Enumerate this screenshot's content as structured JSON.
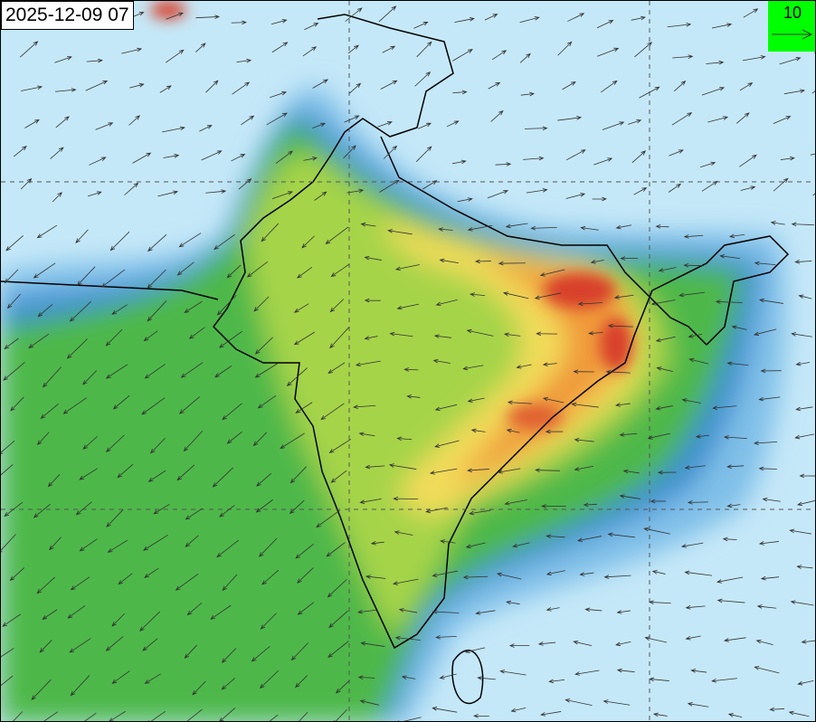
{
  "timestamp": "2025-12-09 07",
  "legend": {
    "reference_vector": "10",
    "icon": "arrow-right-icon",
    "background": "#00ff00"
  },
  "colors": {
    "ocean_low": "#c5e8f8",
    "low": "#7fbfe8",
    "mid_low": "#3d8fd0",
    "green": "#4db848",
    "light_green": "#a6d44a",
    "yellow": "#f2dc5a",
    "orange": "#f09a3a",
    "red": "#d8402a"
  }
}
